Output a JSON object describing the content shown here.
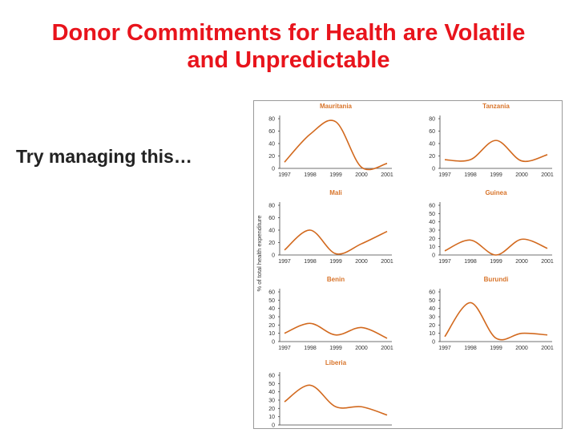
{
  "page": {
    "title_line1": "Donor Commitments for Health are Volatile",
    "title_line2": "and Unpredictable",
    "subtitle": "Try managing this…"
  },
  "colors": {
    "title": "#e8141c",
    "curve": "#d2691e",
    "panel_title": "#d8742a"
  },
  "chart_data": [
    {
      "type": "line",
      "title": "Mauritania",
      "x": [
        "1997",
        "1998",
        "1999",
        "2000",
        "2001"
      ],
      "yticks": [
        0,
        20,
        40,
        60,
        80
      ],
      "ylim": [
        0,
        80
      ],
      "values": [
        10,
        55,
        75,
        2,
        8
      ]
    },
    {
      "type": "line",
      "title": "Tanzania",
      "x": [
        "1997",
        "1998",
        "1999",
        "2000",
        "2001"
      ],
      "yticks": [
        0,
        20,
        40,
        60,
        80
      ],
      "ylim": [
        0,
        80
      ],
      "values": [
        14,
        14,
        45,
        12,
        22
      ]
    },
    {
      "type": "line",
      "title": "Mali",
      "x": [
        "1997",
        "1998",
        "1999",
        "2000",
        "2001"
      ],
      "yticks": [
        0,
        20,
        40,
        60,
        80
      ],
      "ylim": [
        0,
        80
      ],
      "values": [
        8,
        40,
        2,
        18,
        38
      ]
    },
    {
      "type": "line",
      "title": "Guinea",
      "x": [
        "1997",
        "1998",
        "1999",
        "2000",
        "2001"
      ],
      "yticks": [
        0,
        10,
        20,
        30,
        40,
        50,
        60
      ],
      "ylim": [
        0,
        60
      ],
      "values": [
        5,
        18,
        0,
        19,
        8
      ]
    },
    {
      "type": "line",
      "title": "Benin",
      "x": [
        "1997",
        "1998",
        "1999",
        "2000",
        "2001"
      ],
      "yticks": [
        0,
        10,
        20,
        30,
        40,
        50,
        60
      ],
      "ylim": [
        0,
        60
      ],
      "values": [
        10,
        22,
        8,
        17,
        4
      ]
    },
    {
      "type": "line",
      "title": "Burundi",
      "x": [
        "1997",
        "1998",
        "1999",
        "2000",
        "2001"
      ],
      "yticks": [
        0,
        10,
        20,
        30,
        40,
        50,
        60
      ],
      "ylim": [
        0,
        60
      ],
      "values": [
        6,
        47,
        4,
        10,
        8
      ]
    },
    {
      "type": "line",
      "title": "Liberia",
      "x": [
        "1997",
        "1998",
        "1999",
        "2000",
        "2001"
      ],
      "yticks": [
        0,
        10,
        20,
        30,
        40,
        50,
        60
      ],
      "ylim": [
        0,
        60
      ],
      "values": [
        28,
        48,
        22,
        22,
        12
      ]
    }
  ],
  "shared_ylabel": "% of total health expenditure"
}
